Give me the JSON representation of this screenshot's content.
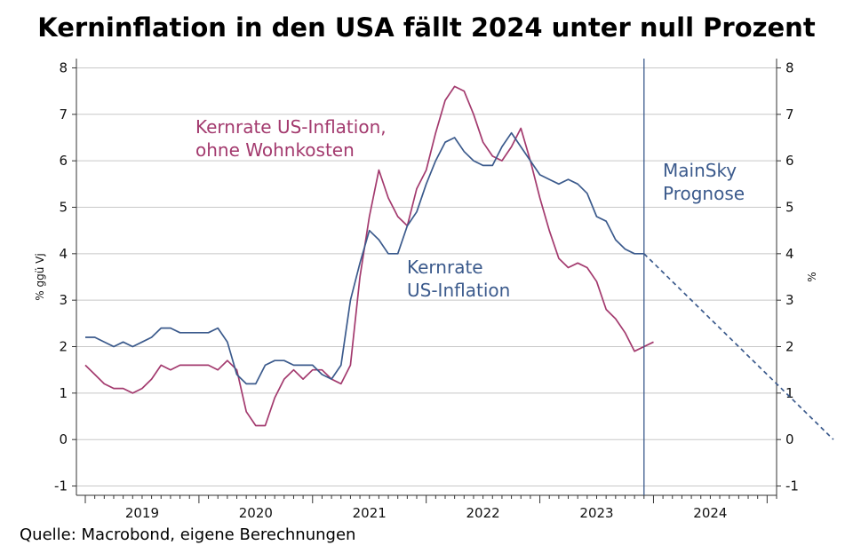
{
  "title": "Kerninflation in den USA fällt 2024 unter null Prozent",
  "source": "Quelle: Macrobond, eigene Berechnungen",
  "chart_data": {
    "type": "line",
    "ylabel_left": "% ggü Vj",
    "ylabel_right": "%",
    "ylim": [
      -1.2,
      8.2
    ],
    "yticks": [
      -1,
      0,
      1,
      2,
      3,
      4,
      5,
      6,
      7,
      8
    ],
    "year_labels": [
      "2019",
      "2020",
      "2021",
      "2022",
      "2023",
      "2024"
    ],
    "colors": {
      "core": "#3b5a8c",
      "ex_shelter": "#a33a6e",
      "forecast_line": "#3b5a8c",
      "grid": "#c8c8c8"
    },
    "series": [
      {
        "key": "ex_shelter",
        "values": [
          1.6,
          1.4,
          1.2,
          1.1,
          1.1,
          1.0,
          1.1,
          1.3,
          1.6,
          1.5,
          1.6,
          1.6,
          1.6,
          1.6,
          1.5,
          1.7,
          1.5,
          0.6,
          0.3,
          0.3,
          0.9,
          1.3,
          1.5,
          1.3,
          1.5,
          1.5,
          1.3,
          1.2,
          1.6,
          3.5,
          4.8,
          5.8,
          5.2,
          4.8,
          4.6,
          5.4,
          5.8,
          6.6,
          7.3,
          7.6,
          7.5,
          7.0,
          6.4,
          6.1,
          6.0,
          6.3,
          6.7,
          6.0,
          5.2,
          4.5,
          3.9,
          3.7,
          3.8,
          3.7,
          3.4,
          2.8,
          2.6,
          2.3,
          1.9,
          2.0,
          2.1
        ]
      },
      {
        "key": "core",
        "values": [
          2.2,
          2.2,
          2.1,
          2.0,
          2.1,
          2.0,
          2.1,
          2.2,
          2.4,
          2.4,
          2.3,
          2.3,
          2.3,
          2.3,
          2.4,
          2.1,
          1.4,
          1.2,
          1.2,
          1.6,
          1.7,
          1.7,
          1.6,
          1.6,
          1.6,
          1.4,
          1.3,
          1.6,
          3.0,
          3.8,
          4.5,
          4.3,
          4.0,
          4.0,
          4.6,
          4.9,
          5.5,
          6.0,
          6.4,
          6.5,
          6.2,
          6.0,
          5.9,
          5.9,
          6.3,
          6.6,
          6.3,
          6.0,
          5.7,
          5.6,
          5.5,
          5.6,
          5.5,
          5.3,
          4.8,
          4.7,
          4.3,
          4.1,
          4.0,
          4.0
        ]
      }
    ],
    "forecast": {
      "from": 4.0,
      "to": 0.0,
      "months": 20
    },
    "annotations": {
      "ex_shelter": [
        "Kernrate US-Inflation,",
        "ohne Wohnkosten"
      ],
      "core": [
        "Kernrate",
        "US-Inflation"
      ],
      "forecast": [
        "MainSky",
        "Prognose"
      ]
    }
  }
}
